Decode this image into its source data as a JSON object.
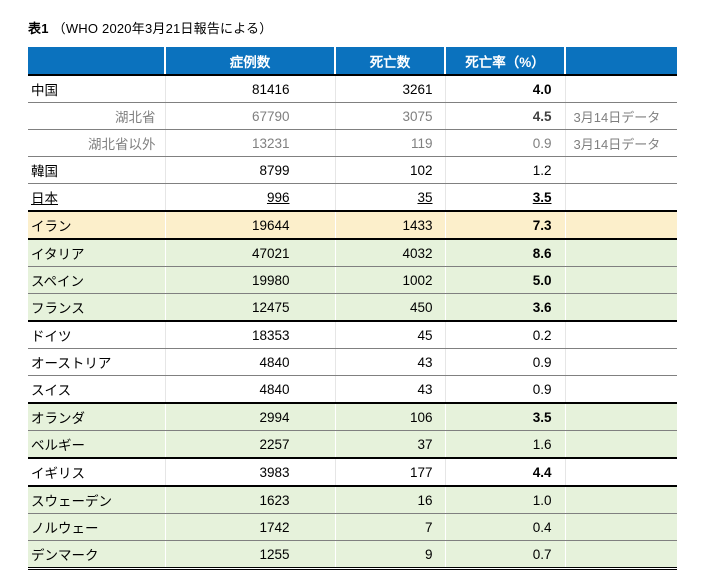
{
  "title": {
    "bold": "表1",
    "rest": "（WHO 2020年3月21日報告による）"
  },
  "colors": {
    "header_bg": "#0B72BE",
    "row_orange": "#FCEFCB",
    "row_green": "#E6F2DB",
    "gray_text": "#7F7F7F",
    "thin_border": "#808080",
    "thick_border": "#000000"
  },
  "table": {
    "headers": {
      "label": "",
      "cases": "症例数",
      "deaths": "死亡数",
      "rate": "死亡率（%）",
      "note": ""
    },
    "rows": [
      {
        "name": "中国",
        "cases": "81416",
        "deaths": "3261",
        "rate": "4.0",
        "note": "",
        "bg": "white",
        "gray": false,
        "underline": false,
        "rate_bold": true,
        "indent": false,
        "border": "thin"
      },
      {
        "name": "湖北省",
        "cases": "67790",
        "deaths": "3075",
        "rate": "4.5",
        "note": "3月14日データ",
        "bg": "white",
        "gray": true,
        "underline": false,
        "rate_bold": true,
        "indent": true,
        "border": "thin"
      },
      {
        "name": "湖北省以外",
        "cases": "13231",
        "deaths": "119",
        "rate": "0.9",
        "note": "3月14日データ",
        "bg": "white",
        "gray": true,
        "underline": false,
        "rate_bold": false,
        "indent": true,
        "border": "thin"
      },
      {
        "name": "韓国",
        "cases": "8799",
        "deaths": "102",
        "rate": "1.2",
        "note": "",
        "bg": "white",
        "gray": false,
        "underline": false,
        "rate_bold": false,
        "indent": false,
        "border": "thin"
      },
      {
        "name": "日本",
        "cases": "996",
        "deaths": "35",
        "rate": "3.5",
        "note": "",
        "bg": "white",
        "gray": false,
        "underline": true,
        "rate_bold": true,
        "indent": false,
        "border": "thick"
      },
      {
        "name": "イラン",
        "cases": "19644",
        "deaths": "1433",
        "rate": "7.3",
        "note": "",
        "bg": "orange",
        "gray": false,
        "underline": false,
        "rate_bold": true,
        "indent": false,
        "border": "thick"
      },
      {
        "name": "イタリア",
        "cases": "47021",
        "deaths": "4032",
        "rate": "8.6",
        "note": "",
        "bg": "green",
        "gray": false,
        "underline": false,
        "rate_bold": true,
        "indent": false,
        "border": "thin"
      },
      {
        "name": "スペイン",
        "cases": "19980",
        "deaths": "1002",
        "rate": "5.0",
        "note": "",
        "bg": "green",
        "gray": false,
        "underline": false,
        "rate_bold": true,
        "indent": false,
        "border": "thin"
      },
      {
        "name": "フランス",
        "cases": "12475",
        "deaths": "450",
        "rate": "3.6",
        "note": "",
        "bg": "green",
        "gray": false,
        "underline": false,
        "rate_bold": true,
        "indent": false,
        "border": "thick"
      },
      {
        "name": "ドイツ",
        "cases": "18353",
        "deaths": "45",
        "rate": "0.2",
        "note": "",
        "bg": "white",
        "gray": false,
        "underline": false,
        "rate_bold": false,
        "indent": false,
        "border": "thin"
      },
      {
        "name": "オーストリア",
        "cases": "4840",
        "deaths": "43",
        "rate": "0.9",
        "note": "",
        "bg": "white",
        "gray": false,
        "underline": false,
        "rate_bold": false,
        "indent": false,
        "border": "thin"
      },
      {
        "name": "スイス",
        "cases": "4840",
        "deaths": "43",
        "rate": "0.9",
        "note": "",
        "bg": "white",
        "gray": false,
        "underline": false,
        "rate_bold": false,
        "indent": false,
        "border": "thick"
      },
      {
        "name": "オランダ",
        "cases": "2994",
        "deaths": "106",
        "rate": "3.5",
        "note": "",
        "bg": "green",
        "gray": false,
        "underline": false,
        "rate_bold": true,
        "indent": false,
        "border": "thin"
      },
      {
        "name": "ベルギー",
        "cases": "2257",
        "deaths": "37",
        "rate": "1.6",
        "note": "",
        "bg": "green",
        "gray": false,
        "underline": false,
        "rate_bold": false,
        "indent": false,
        "border": "thick"
      },
      {
        "name": "イギリス",
        "cases": "3983",
        "deaths": "177",
        "rate": "4.4",
        "note": "",
        "bg": "white",
        "gray": false,
        "underline": false,
        "rate_bold": true,
        "indent": false,
        "border": "thick"
      },
      {
        "name": "スウェーデン",
        "cases": "1623",
        "deaths": "16",
        "rate": "1.0",
        "note": "",
        "bg": "green",
        "gray": false,
        "underline": false,
        "rate_bold": false,
        "indent": false,
        "border": "thin"
      },
      {
        "name": "ノルウェー",
        "cases": "1742",
        "deaths": "7",
        "rate": "0.4",
        "note": "",
        "bg": "green",
        "gray": false,
        "underline": false,
        "rate_bold": false,
        "indent": false,
        "border": "thin"
      },
      {
        "name": "デンマーク",
        "cases": "1255",
        "deaths": "9",
        "rate": "0.7",
        "note": "",
        "bg": "green",
        "gray": false,
        "underline": false,
        "rate_bold": false,
        "indent": false,
        "border": "double"
      }
    ]
  }
}
